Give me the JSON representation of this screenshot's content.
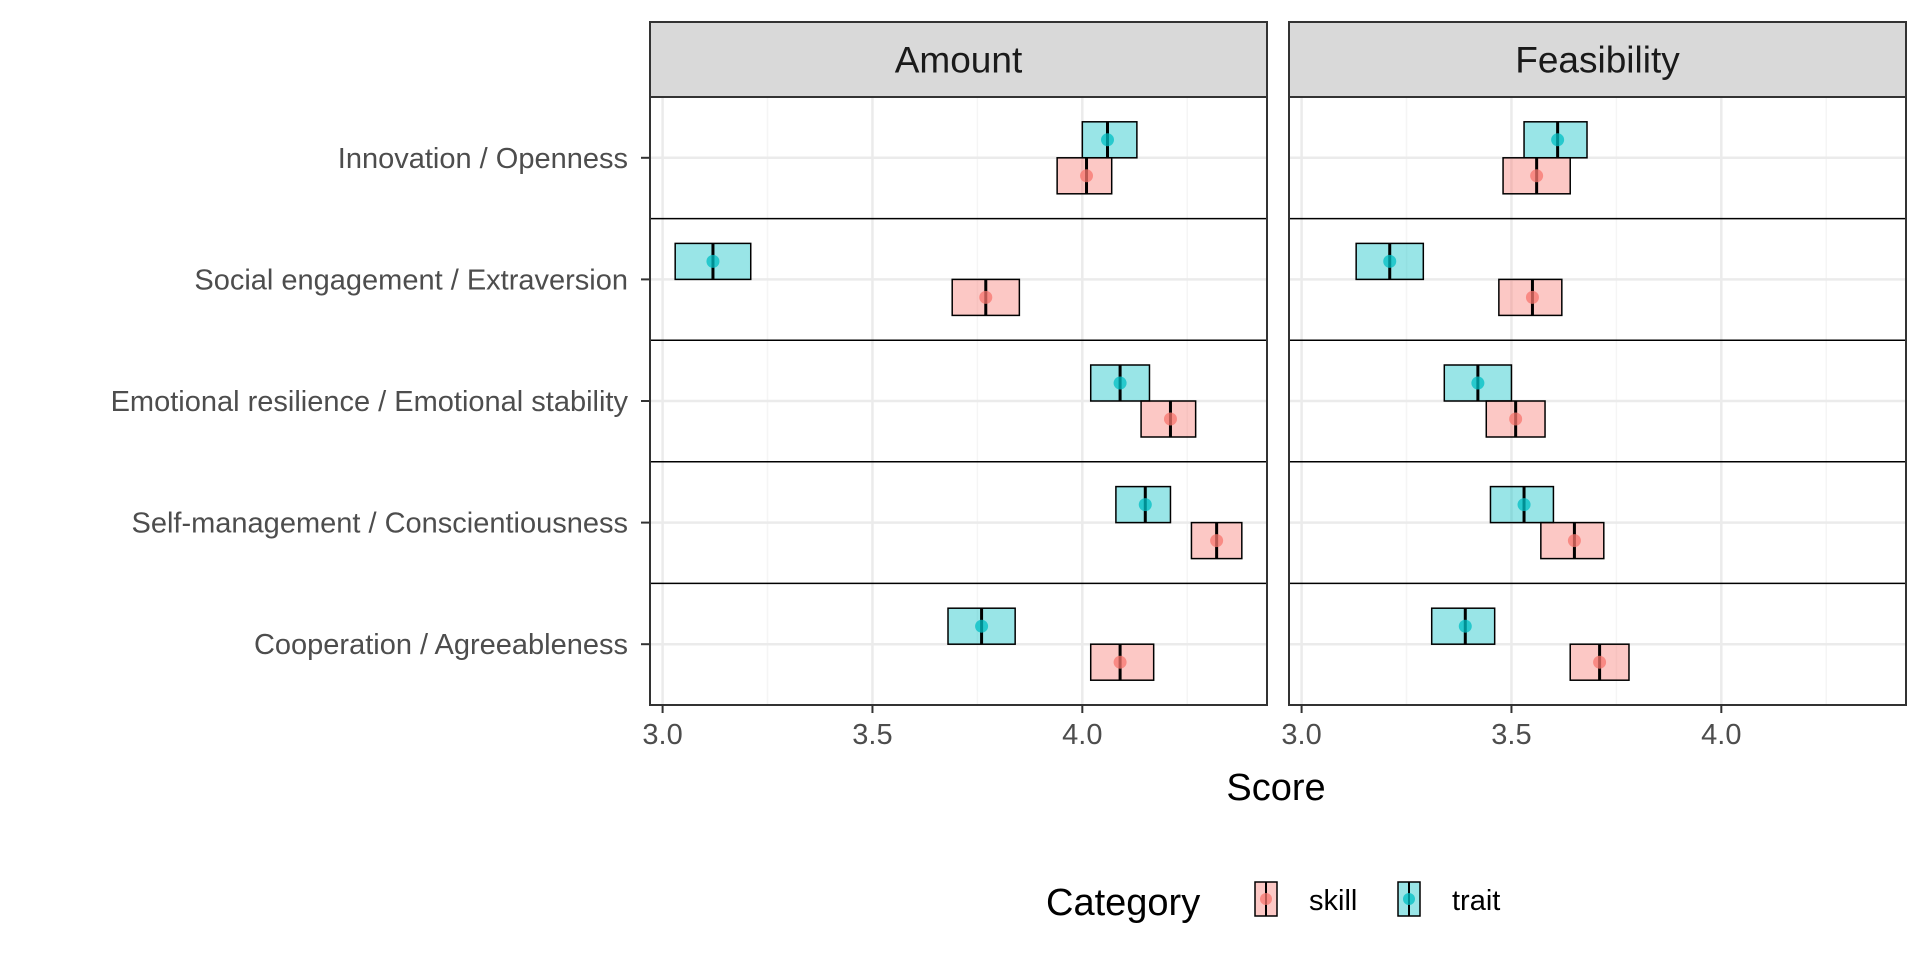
{
  "chart_data": {
    "type": "range",
    "description_kind": "faceted interval plot",
    "xlabel": "Score",
    "facets": [
      {
        "name": "Amount",
        "xlim": [
          2.97,
          4.44
        ],
        "xticks": [
          3.0,
          3.5,
          4.0
        ],
        "tick_labels": [
          "3.0",
          "3.5",
          "4.0"
        ]
      },
      {
        "name": "Feasibility",
        "xlim": [
          2.97,
          4.44
        ],
        "xticks": [
          3.0,
          3.5,
          4.0
        ],
        "tick_labels": [
          "3.0",
          "3.5",
          "4.0"
        ]
      }
    ],
    "categories": [
      "Innovation / Openness",
      "Social engagement / Extraversion",
      "Emotional resilience / Emotional stability",
      "Self-management / Conscientiousness",
      "Cooperation / Agreeableness"
    ],
    "legend": {
      "title": "Category",
      "placement": "bottom",
      "entries": [
        {
          "key": "skill",
          "label": "skill",
          "fill": "#f8766d",
          "color": "#f8766d"
        },
        {
          "key": "trait",
          "label": "trait",
          "fill": "#00bfc4",
          "color": "#00bfc4"
        }
      ]
    },
    "series": [
      {
        "name": "trait",
        "values": {
          "Amount": [
            {
              "mean": 4.06,
              "low": 4.0,
              "high": 4.13
            },
            {
              "mean": 3.12,
              "low": 3.03,
              "high": 3.21
            },
            {
              "mean": 4.09,
              "low": 4.02,
              "high": 4.16
            },
            {
              "mean": 4.15,
              "low": 4.08,
              "high": 4.21
            },
            {
              "mean": 3.76,
              "low": 3.68,
              "high": 3.84
            }
          ],
          "Feasibility": [
            {
              "mean": 3.61,
              "low": 3.53,
              "high": 3.68
            },
            {
              "mean": 3.21,
              "low": 3.13,
              "high": 3.29
            },
            {
              "mean": 3.42,
              "low": 3.34,
              "high": 3.5
            },
            {
              "mean": 3.53,
              "low": 3.45,
              "high": 3.6
            },
            {
              "mean": 3.39,
              "low": 3.31,
              "high": 3.46
            }
          ]
        }
      },
      {
        "name": "skill",
        "values": {
          "Amount": [
            {
              "mean": 4.01,
              "low": 3.94,
              "high": 4.07
            },
            {
              "mean": 3.77,
              "low": 3.69,
              "high": 3.85
            },
            {
              "mean": 4.21,
              "low": 4.14,
              "high": 4.27
            },
            {
              "mean": 4.32,
              "low": 4.26,
              "high": 4.38
            },
            {
              "mean": 4.09,
              "low": 4.02,
              "high": 4.17
            }
          ],
          "Feasibility": [
            {
              "mean": 3.56,
              "low": 3.48,
              "high": 3.64
            },
            {
              "mean": 3.55,
              "low": 3.47,
              "high": 3.62
            },
            {
              "mean": 3.51,
              "low": 3.44,
              "high": 3.58
            },
            {
              "mean": 3.65,
              "low": 3.57,
              "high": 3.72
            },
            {
              "mean": 3.71,
              "low": 3.64,
              "high": 3.78
            }
          ]
        }
      }
    ],
    "grid": true,
    "colors": {
      "strip_fill": "#d9d9d9",
      "panel_border": "#333333",
      "grid_major": "#ebebeb",
      "grid_minor": "#f5f5f5"
    }
  }
}
